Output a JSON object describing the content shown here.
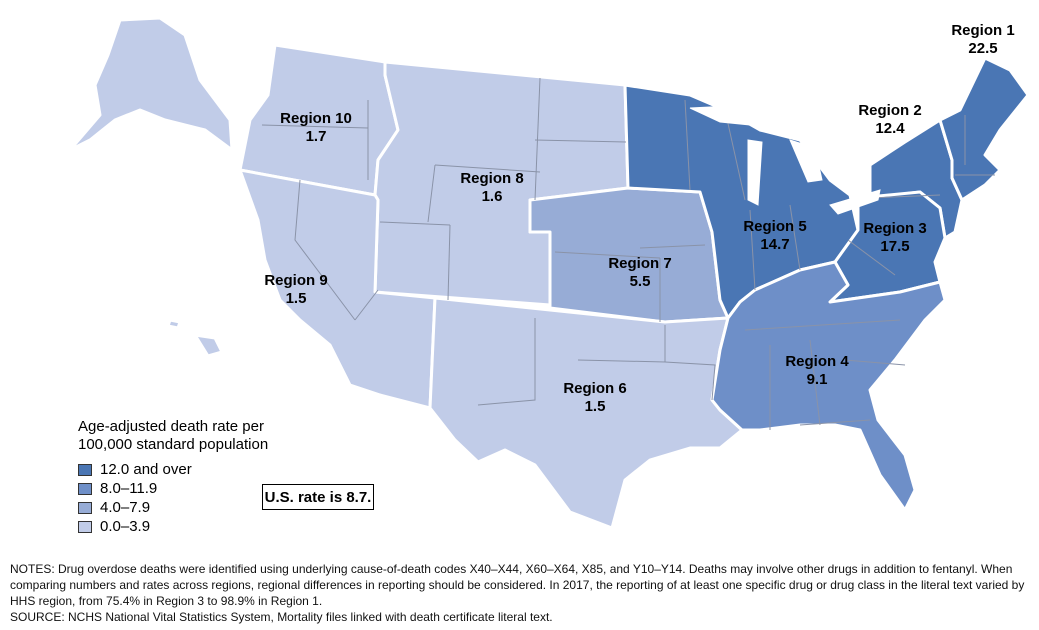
{
  "colors": {
    "bin_12_plus": "#4a76b4",
    "bin_8_11": "#6e8fc8",
    "bin_4_7": "#97acd6",
    "bin_0_3": "#c1cce8",
    "state_border": "#8a93a8",
    "region_border": "#ffffff"
  },
  "regions": [
    {
      "id": "region-1",
      "name": "Region 1",
      "rate": "22.5",
      "bin": "bin_12_plus"
    },
    {
      "id": "region-2",
      "name": "Region 2",
      "rate": "12.4",
      "bin": "bin_12_plus"
    },
    {
      "id": "region-3",
      "name": "Region 3",
      "rate": "17.5",
      "bin": "bin_12_plus"
    },
    {
      "id": "region-4",
      "name": "Region 4",
      "rate": "9.1",
      "bin": "bin_8_11"
    },
    {
      "id": "region-5",
      "name": "Region 5",
      "rate": "14.7",
      "bin": "bin_12_plus"
    },
    {
      "id": "region-6",
      "name": "Region 6",
      "rate": "1.5",
      "bin": "bin_0_3"
    },
    {
      "id": "region-7",
      "name": "Region 7",
      "rate": "5.5",
      "bin": "bin_4_7"
    },
    {
      "id": "region-8",
      "name": "Region 8",
      "rate": "1.6",
      "bin": "bin_0_3"
    },
    {
      "id": "region-9",
      "name": "Region 9",
      "rate": "1.5",
      "bin": "bin_0_3"
    },
    {
      "id": "region-10",
      "name": "Region 10",
      "rate": "1.7",
      "bin": "bin_0_3"
    }
  ],
  "legend": {
    "title_line1": "Age-adjusted death rate per",
    "title_line2": "100,000 standard population",
    "items": [
      {
        "label": "12.0 and over",
        "bin": "bin_12_plus"
      },
      {
        "label": "8.0–11.9",
        "bin": "bin_8_11"
      },
      {
        "label": "4.0–7.9",
        "bin": "bin_4_7"
      },
      {
        "label": "0.0–3.9",
        "bin": "bin_0_3"
      }
    ]
  },
  "us_rate": "U.S. rate is 8.7.",
  "notes": {
    "notes": "NOTES: Drug overdose deaths were identified using underlying cause-of-death codes X40–X44, X60–X64, X85, and Y10–Y14. Deaths may involve other drugs in addition to fentanyl. When comparing numbers and rates across regions, regional differences in reporting should be considered. In 2017, the reporting of at least one specific drug or drug class in the literal text varied by HHS region, from 75.4% in Region 3 to 98.9% in Region 1.",
    "source": "SOURCE: NCHS National Vital Statistics System, Mortality files linked with death certificate literal text."
  }
}
